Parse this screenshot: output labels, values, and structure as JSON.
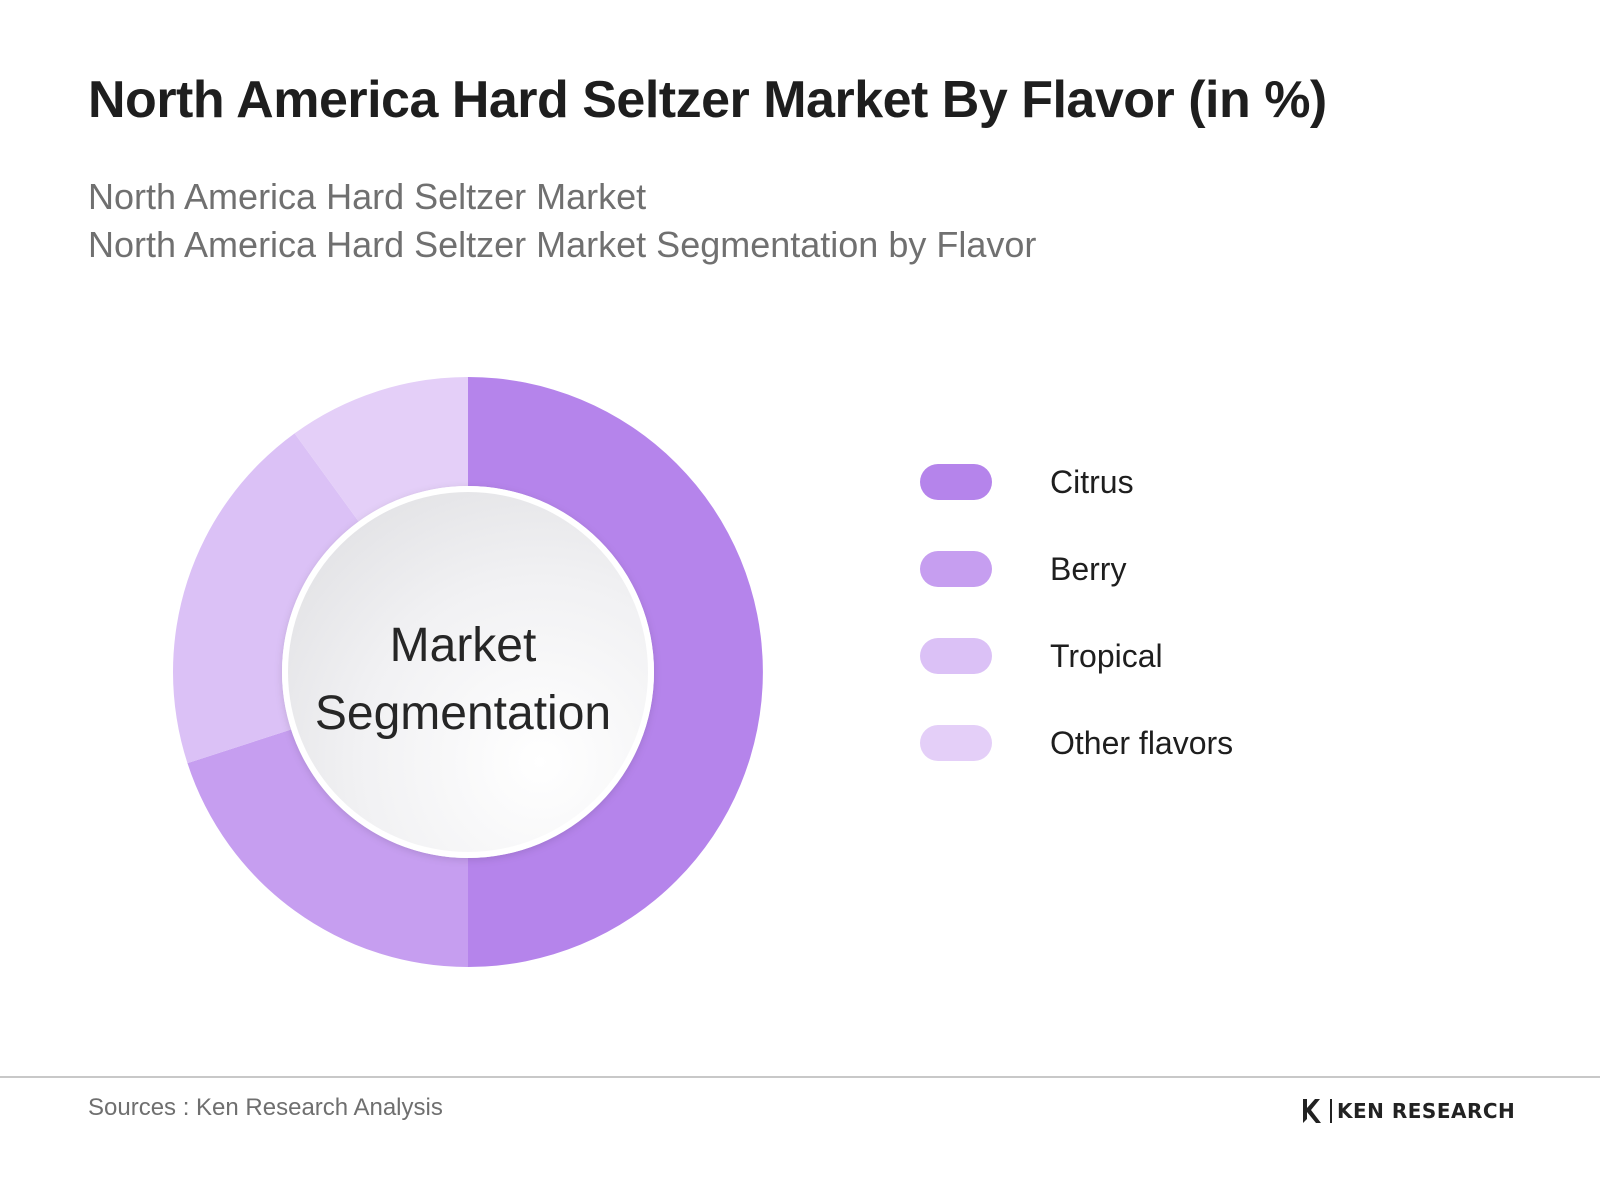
{
  "header": {
    "title": "North America Hard Seltzer Market By Flavor (in %)",
    "subtitle_line1": "North America Hard Seltzer Market",
    "subtitle_line2": "North America Hard Seltzer Market Segmentation by Flavor"
  },
  "chart_data": {
    "type": "pie",
    "variant": "donut",
    "center_label_line1": "Market",
    "center_label_line2": "Segmentation",
    "slices": [
      {
        "label": "Citrus",
        "value": 50,
        "color": "#b584eb"
      },
      {
        "label": "Berry",
        "value": 20,
        "color": "#c69ef0"
      },
      {
        "label": "Tropical",
        "value": 20,
        "color": "#dbc1f6"
      },
      {
        "label": "Other flavors",
        "value": 10,
        "color": "#e4cff8"
      }
    ],
    "legend_position": "right"
  },
  "footer": {
    "source": "Sources : Ken Research Analysis",
    "logo_text": "KEN RESEARCH"
  }
}
